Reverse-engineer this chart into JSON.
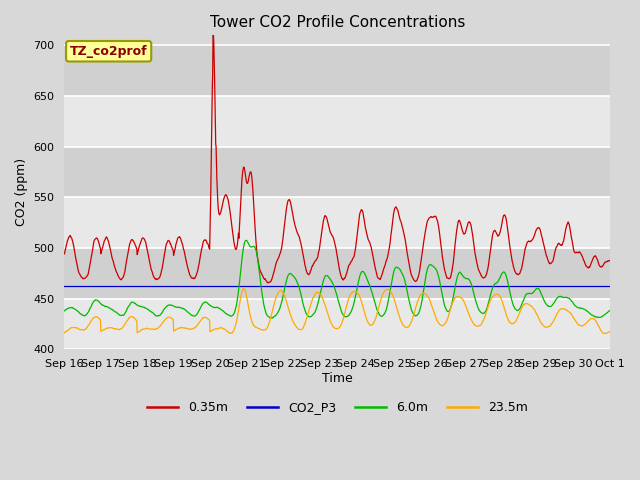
{
  "title": "Tower CO2 Profile Concentrations",
  "xlabel": "Time",
  "ylabel": "CO2 (ppm)",
  "ylim": [
    400,
    710
  ],
  "xlim": [
    0,
    360
  ],
  "fig_width": 6.4,
  "fig_height": 4.8,
  "dpi": 100,
  "background_color": "#d8d8d8",
  "plot_bg_color": "#d8d8d8",
  "band_color_light": "#e8e8e8",
  "band_color_dark": "#d0d0d0",
  "grid_color": "#ffffff",
  "annotation_text": "TZ_co2prof",
  "annotation_bg": "#ffff99",
  "annotation_border": "#999900",
  "series": {
    "0.35m": {
      "color": "#cc0000",
      "label": "0.35m"
    },
    "CO2_P3": {
      "color": "#0000cc",
      "label": "CO2_P3"
    },
    "6.0m": {
      "color": "#00bb00",
      "label": "6.0m"
    },
    "23.5m": {
      "color": "#ffaa00",
      "label": "23.5m"
    }
  },
  "xtick_labels": [
    "Sep 16",
    "Sep 17",
    "Sep 18",
    "Sep 19",
    "Sep 20",
    "Sep 21",
    "Sep 22",
    "Sep 23",
    "Sep 24",
    "Sep 25",
    "Sep 26",
    "Sep 27",
    "Sep 28",
    "Sep 29",
    "Sep 30",
    "Oct 1"
  ],
  "xtick_positions": [
    0,
    24,
    48,
    72,
    96,
    120,
    144,
    168,
    192,
    216,
    240,
    264,
    288,
    312,
    336,
    360
  ],
  "ytick_labels": [
    "400",
    "450",
    "500",
    "550",
    "600",
    "650",
    "700"
  ],
  "ytick_positions": [
    400,
    450,
    500,
    550,
    600,
    650,
    700
  ],
  "legend_ncol": 4,
  "title_fontsize": 11,
  "axis_label_fontsize": 9,
  "tick_fontsize": 8
}
